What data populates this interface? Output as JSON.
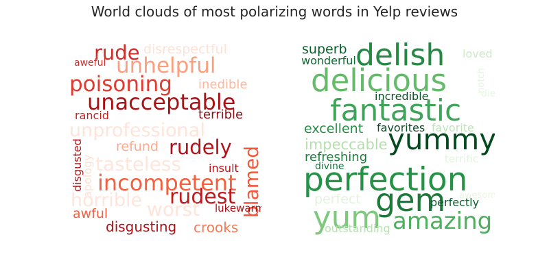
{
  "title": "World clouds of most polarizing words in Yelp reviews",
  "chart_data": [
    {
      "type": "wordcloud",
      "sentiment": "negative",
      "colormap": "Reds",
      "words": [
        {
          "text": "rude",
          "color": "#d42c27",
          "vertical": false
        },
        {
          "text": "disrespectful",
          "color": "#fde2d8",
          "vertical": false
        },
        {
          "text": "aweful",
          "color": "#d32f2a",
          "vertical": false
        },
        {
          "text": "unhelpful",
          "color": "#fc9f7f",
          "vertical": false
        },
        {
          "text": "poisoning",
          "color": "#e03a31",
          "vertical": false
        },
        {
          "text": "inedible",
          "color": "#fcb79d",
          "vertical": false
        },
        {
          "text": "unacceptable",
          "color": "#a81217",
          "vertical": false
        },
        {
          "text": "terrible",
          "color": "#8c0d14",
          "vertical": false
        },
        {
          "text": "rancid",
          "color": "#c8211f",
          "vertical": false
        },
        {
          "text": "unprofessional",
          "color": "#fee4da",
          "vertical": false
        },
        {
          "text": "refund",
          "color": "#fcab8f",
          "vertical": false
        },
        {
          "text": "rudely",
          "color": "#b01218",
          "vertical": false
        },
        {
          "text": "blamed",
          "color": "#f3583c",
          "vertical": true
        },
        {
          "text": "tasteless",
          "color": "#fee6dc",
          "vertical": false
        },
        {
          "text": "insult",
          "color": "#b01218",
          "vertical": false
        },
        {
          "text": "disgusted",
          "color": "#b41619",
          "vertical": true
        },
        {
          "text": "apology",
          "color": "#fde0d4",
          "vertical": true
        },
        {
          "text": "incompetent",
          "color": "#f4613f",
          "vertical": false
        },
        {
          "text": "horrible",
          "color": "#fee5db",
          "vertical": false
        },
        {
          "text": "rudest",
          "color": "#be1a1d",
          "vertical": false
        },
        {
          "text": "lukewarm",
          "color": "#a81217",
          "vertical": false
        },
        {
          "text": "worst",
          "color": "#fee4d9",
          "vertical": false
        },
        {
          "text": "awful",
          "color": "#f26144",
          "vertical": false
        },
        {
          "text": "disgusting",
          "color": "#a81217",
          "vertical": false
        },
        {
          "text": "crooks",
          "color": "#f47a54",
          "vertical": false
        }
      ]
    },
    {
      "type": "wordcloud",
      "sentiment": "positive",
      "colormap": "Greens",
      "words": [
        {
          "text": "superb",
          "color": "#0b5e2c",
          "vertical": false
        },
        {
          "text": "delish",
          "color": "#268845",
          "vertical": false
        },
        {
          "text": "loved",
          "color": "#cdebc6",
          "vertical": false
        },
        {
          "text": "wonderful",
          "color": "#0d6b31",
          "vertical": false
        },
        {
          "text": "delicious",
          "color": "#66bb6b",
          "vertical": false
        },
        {
          "text": "notch",
          "color": "#e4f4df",
          "vertical": true
        },
        {
          "text": "incredible",
          "color": "#0b4d26",
          "vertical": false
        },
        {
          "text": "die",
          "color": "#e8f6e4",
          "vertical": false
        },
        {
          "text": "fantastic",
          "color": "#3fa45a",
          "vertical": false
        },
        {
          "text": "excellent",
          "color": "#2a8c48",
          "vertical": false
        },
        {
          "text": "favorites",
          "color": "#0b4d26",
          "vertical": false
        },
        {
          "text": "favorite",
          "color": "#bfe4b8",
          "vertical": false
        },
        {
          "text": "yummy",
          "color": "#044a1f",
          "vertical": false
        },
        {
          "text": "impeccable",
          "color": "#b4dfad",
          "vertical": false
        },
        {
          "text": "terrific",
          "color": "#e3f4de",
          "vertical": false
        },
        {
          "text": "refreshing",
          "color": "#1f7c3c",
          "vertical": false
        },
        {
          "text": "divine",
          "color": "#16783a",
          "vertical": false
        },
        {
          "text": "perfection",
          "color": "#269248",
          "vertical": false
        },
        {
          "text": "perfect",
          "color": "#e3f3dd",
          "vertical": false
        },
        {
          "text": "gem",
          "color": "#1d7a3b",
          "vertical": false
        },
        {
          "text": "awesome",
          "color": "#e8f5e3",
          "vertical": false
        },
        {
          "text": "perfectly",
          "color": "#0b5e2c",
          "vertical": false
        },
        {
          "text": "yum",
          "color": "#7fc97f",
          "vertical": false
        },
        {
          "text": "amazing",
          "color": "#4fae5f",
          "vertical": false
        },
        {
          "text": "outstanding",
          "color": "#b7e2b0",
          "vertical": false
        }
      ]
    }
  ]
}
